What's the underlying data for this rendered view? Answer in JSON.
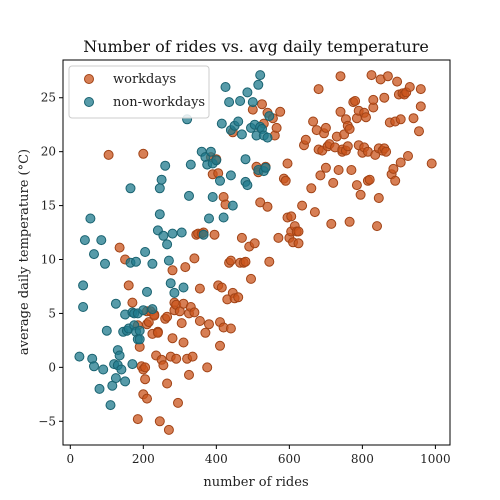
{
  "chart_data": {
    "type": "scatter",
    "title": "Number of rides vs. avg daily temperature",
    "xlabel": "number of rides",
    "ylabel": "average daily temperature (°C)",
    "xlim": [
      -20,
      1040
    ],
    "ylim": [
      -7.2,
      28.5
    ],
    "x_ticks": [
      0,
      200,
      400,
      600,
      800,
      1000
    ],
    "y_ticks": [
      -5,
      0,
      5,
      10,
      15,
      20,
      25
    ],
    "grid": false,
    "legend_position": "top-left",
    "series": [
      {
        "name": "workdays",
        "color": "#c9541c",
        "points": [
          [
            105,
            19.7
          ],
          [
            135,
            11.1
          ],
          [
            150,
            10.0
          ],
          [
            160,
            7.6
          ],
          [
            170,
            6.0
          ],
          [
            185,
            3.9
          ],
          [
            190,
            1.9
          ],
          [
            185,
            -4.8
          ],
          [
            195,
            0.1
          ],
          [
            200,
            -0.2
          ],
          [
            200,
            -2.5
          ],
          [
            205,
            -1.1
          ],
          [
            210,
            -2.9
          ],
          [
            210,
            5.2
          ],
          [
            220,
            5.2
          ],
          [
            205,
            0.0
          ],
          [
            200,
            19.8
          ],
          [
            210,
            4.0
          ],
          [
            215,
            4.2
          ],
          [
            225,
            3.1
          ],
          [
            230,
            4.9
          ],
          [
            230,
            4.8
          ],
          [
            235,
            1.1
          ],
          [
            240,
            3.3
          ],
          [
            240,
            3.2
          ],
          [
            245,
            -5.0
          ],
          [
            250,
            0.7
          ],
          [
            255,
            0.2
          ],
          [
            260,
            4.5
          ],
          [
            265,
            -1.5
          ],
          [
            265,
            4.7
          ],
          [
            270,
            -5.8
          ],
          [
            275,
            1.0
          ],
          [
            280,
            2.7
          ],
          [
            280,
            9.0
          ],
          [
            285,
            5.3
          ],
          [
            285,
            6.0
          ],
          [
            290,
            0.8
          ],
          [
            290,
            5.8
          ],
          [
            295,
            -3.3
          ],
          [
            300,
            5.2
          ],
          [
            305,
            4.1
          ],
          [
            310,
            2.3
          ],
          [
            310,
            5.9
          ],
          [
            315,
            9.3
          ],
          [
            320,
            0.8
          ],
          [
            325,
            -0.7
          ],
          [
            325,
            5.0
          ],
          [
            330,
            5.6
          ],
          [
            335,
            1.0
          ],
          [
            340,
            5.1
          ],
          [
            340,
            10.1
          ],
          [
            345,
            12.3
          ],
          [
            350,
            12.4
          ],
          [
            355,
            4.3
          ],
          [
            355,
            7.3
          ],
          [
            360,
            12.4
          ],
          [
            365,
            12.5
          ],
          [
            370,
            3.2
          ],
          [
            375,
            0.0
          ],
          [
            380,
            4.0
          ],
          [
            385,
            19.5
          ],
          [
            390,
            17.9
          ],
          [
            395,
            12.3
          ],
          [
            400,
            19.3
          ],
          [
            405,
            18.0
          ],
          [
            405,
            7.6
          ],
          [
            410,
            2.0
          ],
          [
            410,
            4.2
          ],
          [
            415,
            7.4
          ],
          [
            420,
            3.7
          ],
          [
            420,
            15.8
          ],
          [
            425,
            15.1
          ],
          [
            430,
            6.3
          ],
          [
            435,
            9.7
          ],
          [
            440,
            9.9
          ],
          [
            440,
            3.6
          ],
          [
            445,
            6.9
          ],
          [
            445,
            21.8
          ],
          [
            450,
            6.4
          ],
          [
            460,
            6.5
          ],
          [
            465,
            9.7
          ],
          [
            470,
            12.0
          ],
          [
            475,
            9.7
          ],
          [
            480,
            9.8
          ],
          [
            490,
            11.2
          ],
          [
            495,
            8.2
          ],
          [
            500,
            23.9
          ],
          [
            505,
            11.5
          ],
          [
            510,
            18.6
          ],
          [
            515,
            18.1
          ],
          [
            520,
            15.3
          ],
          [
            525,
            24.4
          ],
          [
            530,
            22.6
          ],
          [
            535,
            18.6
          ],
          [
            540,
            14.9
          ],
          [
            540,
            23.6
          ],
          [
            545,
            9.8
          ],
          [
            555,
            23.1
          ],
          [
            560,
            21.5
          ],
          [
            565,
            22.2
          ],
          [
            570,
            12.0
          ],
          [
            575,
            23.7
          ],
          [
            585,
            17.5
          ],
          [
            590,
            17.3
          ],
          [
            595,
            18.9
          ],
          [
            595,
            13.9
          ],
          [
            600,
            12.0
          ],
          [
            605,
            12.6
          ],
          [
            605,
            14.0
          ],
          [
            610,
            11.6
          ],
          [
            615,
            13.1
          ],
          [
            620,
            12.6
          ],
          [
            625,
            12.6
          ],
          [
            625,
            11.5
          ],
          [
            635,
            15.0
          ],
          [
            640,
            20.6
          ],
          [
            645,
            21.1
          ],
          [
            660,
            16.6
          ],
          [
            665,
            22.8
          ],
          [
            670,
            14.4
          ],
          [
            675,
            22.0
          ],
          [
            680,
            20.2
          ],
          [
            680,
            25.8
          ],
          [
            685,
            17.8
          ],
          [
            690,
            20.1
          ],
          [
            695,
            21.7
          ],
          [
            700,
            22.2
          ],
          [
            700,
            18.5
          ],
          [
            705,
            20.5
          ],
          [
            710,
            20.7
          ],
          [
            715,
            13.3
          ],
          [
            720,
            17.1
          ],
          [
            725,
            20.4
          ],
          [
            730,
            21.4
          ],
          [
            735,
            18.3
          ],
          [
            740,
            23.7
          ],
          [
            740,
            27.0
          ],
          [
            745,
            20.0
          ],
          [
            745,
            20.2
          ],
          [
            750,
            21.6
          ],
          [
            755,
            20.1
          ],
          [
            755,
            23.0
          ],
          [
            760,
            20.5
          ],
          [
            760,
            22.4
          ],
          [
            765,
            22.1
          ],
          [
            765,
            13.5
          ],
          [
            770,
            18.3
          ],
          [
            775,
            24.6
          ],
          [
            780,
            24.7
          ],
          [
            785,
            23.1
          ],
          [
            785,
            16.9
          ],
          [
            790,
            20.6
          ],
          [
            790,
            23.8
          ],
          [
            795,
            16.0
          ],
          [
            800,
            19.9
          ],
          [
            805,
            23.6
          ],
          [
            805,
            20.4
          ],
          [
            810,
            23.2
          ],
          [
            815,
            20.0
          ],
          [
            815,
            17.3
          ],
          [
            820,
            17.4
          ],
          [
            825,
            27.1
          ],
          [
            830,
            24.1
          ],
          [
            830,
            24.8
          ],
          [
            835,
            19.7
          ],
          [
            840,
            13.1
          ],
          [
            845,
            20.3
          ],
          [
            845,
            15.7
          ],
          [
            850,
            26.7
          ],
          [
            855,
            20.1
          ],
          [
            860,
            20.3
          ],
          [
            860,
            25.0
          ],
          [
            865,
            20.0
          ],
          [
            870,
            27.0
          ],
          [
            875,
            22.7
          ],
          [
            880,
            17.9
          ],
          [
            885,
            18.4
          ],
          [
            890,
            17.3
          ],
          [
            890,
            22.8
          ],
          [
            895,
            26.5
          ],
          [
            900,
            25.3
          ],
          [
            905,
            19.0
          ],
          [
            905,
            23.0
          ],
          [
            910,
            25.4
          ],
          [
            915,
            25.3
          ],
          [
            920,
            25.5
          ],
          [
            925,
            19.6
          ],
          [
            930,
            26.0
          ],
          [
            940,
            23.1
          ],
          [
            955,
            21.9
          ],
          [
            960,
            25.8
          ],
          [
            960,
            24.2
          ],
          [
            990,
            18.9
          ]
        ]
      },
      {
        "name": "non-workdays",
        "color": "#1f7a8c",
        "points": [
          [
            25,
            1.0
          ],
          [
            35,
            5.6
          ],
          [
            35,
            7.6
          ],
          [
            40,
            11.8
          ],
          [
            55,
            13.8
          ],
          [
            60,
            0.8
          ],
          [
            65,
            0.1
          ],
          [
            65,
            10.5
          ],
          [
            80,
            -2.0
          ],
          [
            85,
            11.8
          ],
          [
            90,
            -0.2
          ],
          [
            95,
            9.6
          ],
          [
            100,
            3.4
          ],
          [
            110,
            -3.5
          ],
          [
            115,
            -1.7
          ],
          [
            120,
            0.3
          ],
          [
            125,
            5.9
          ],
          [
            125,
            -1.0
          ],
          [
            130,
            0.2
          ],
          [
            130,
            1.6
          ],
          [
            135,
            1.1
          ],
          [
            140,
            -0.2
          ],
          [
            145,
            3.3
          ],
          [
            150,
            4.9
          ],
          [
            150,
            -1.3
          ],
          [
            155,
            3.4
          ],
          [
            160,
            3.6
          ],
          [
            165,
            16.6
          ],
          [
            165,
            9.7
          ],
          [
            170,
            0.3
          ],
          [
            170,
            5.1
          ],
          [
            175,
            3.9
          ],
          [
            175,
            5.0
          ],
          [
            180,
            3.3
          ],
          [
            180,
            9.8
          ],
          [
            185,
            5.0
          ],
          [
            185,
            2.6
          ],
          [
            190,
            3.4
          ],
          [
            190,
            2.6
          ],
          [
            200,
            5.3
          ],
          [
            205,
            10.7
          ],
          [
            210,
            7.0
          ],
          [
            225,
            5.4
          ],
          [
            225,
            9.6
          ],
          [
            240,
            12.7
          ],
          [
            245,
            16.6
          ],
          [
            245,
            14.2
          ],
          [
            250,
            17.4
          ],
          [
            255,
            12.2
          ],
          [
            260,
            18.7
          ],
          [
            265,
            11.4
          ],
          [
            270,
            9.9
          ],
          [
            275,
            7.8
          ],
          [
            280,
            12.4
          ],
          [
            285,
            6.9
          ],
          [
            305,
            12.5
          ],
          [
            310,
            7.4
          ],
          [
            320,
            23.0
          ],
          [
            325,
            15.9
          ],
          [
            330,
            18.8
          ],
          [
            360,
            20.0
          ],
          [
            365,
            12.3
          ],
          [
            370,
            19.5
          ],
          [
            375,
            18.8
          ],
          [
            380,
            13.8
          ],
          [
            385,
            20.0
          ],
          [
            390,
            18.9
          ],
          [
            390,
            15.8
          ],
          [
            400,
            19.2
          ],
          [
            410,
            17.3
          ],
          [
            415,
            22.6
          ],
          [
            420,
            13.9
          ],
          [
            425,
            26.0
          ],
          [
            435,
            24.6
          ],
          [
            440,
            17.8
          ],
          [
            440,
            22.0
          ],
          [
            445,
            15.0
          ],
          [
            450,
            22.4
          ],
          [
            460,
            22.8
          ],
          [
            465,
            24.7
          ],
          [
            470,
            21.6
          ],
          [
            480,
            19.3
          ],
          [
            480,
            17.2
          ],
          [
            485,
            25.5
          ],
          [
            485,
            16.9
          ],
          [
            495,
            22.2
          ],
          [
            500,
            24.6
          ],
          [
            505,
            22.5
          ],
          [
            510,
            21.5
          ],
          [
            515,
            26.2
          ],
          [
            515,
            18.3
          ],
          [
            520,
            27.1
          ],
          [
            520,
            22.3
          ],
          [
            525,
            22.1
          ],
          [
            530,
            18.2
          ],
          [
            530,
            21.5
          ],
          [
            535,
            18.5
          ],
          [
            540,
            21.3
          ],
          [
            545,
            23.3
          ]
        ]
      }
    ]
  }
}
